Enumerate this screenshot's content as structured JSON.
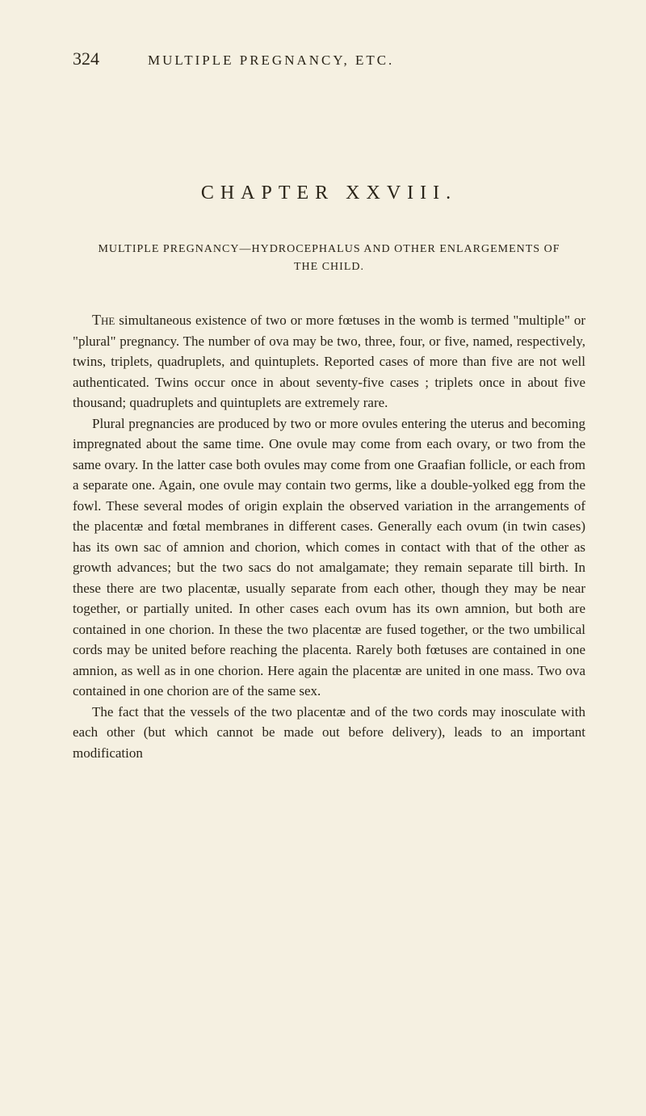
{
  "page": {
    "number": "324",
    "running_title": "MULTIPLE PREGNANCY, ETC."
  },
  "chapter": {
    "title": "CHAPTER XXVIII.",
    "subtitle": "MULTIPLE PREGNANCY—HYDROCEPHALUS AND OTHER ENLARGEMENTS OF THE CHILD."
  },
  "paragraphs": {
    "p1_lead": "The",
    "p1": " simultaneous existence of two or more fœtuses in the womb is termed \"multiple\" or \"plural\" pregnancy. The number of ova may be two, three, four, or five, named, respectively, twins, triplets, quadruplets, and quintuplets. Reported cases of more than five are not well authenticated. Twins occur once in about seventy-five cases ; triplets once in about five thousand; quadruplets and quintuplets are extremely rare.",
    "p2": "Plural pregnancies are produced by two or more ovules entering the uterus and becoming impregnated about the same time. One ovule may come from each ovary, or two from the same ovary. In the latter case both ovules may come from one Graafian follicle, or each from a separate one. Again, one ovule may contain two germs, like a double-yolked egg from the fowl. These several modes of origin explain the observed variation in the arrangements of the placentæ and fœtal membranes in different cases. Generally each ovum (in twin cases) has its own sac of amnion and chorion, which comes in contact with that of the other as growth advances; but the two sacs do not amalgamate; they remain separate till birth. In these there are two placentæ, usually separate from each other, though they may be near together, or partially united. In other cases each ovum has its own amnion, but both are contained in one chorion. In these the two placentæ are fused together, or the two umbilical cords may be united before reaching the placenta. Rarely both fœtuses are contained in one amnion, as well as in one chorion. Here again the placentæ are united in one mass. Two ova contained in one chorion are of the same sex.",
    "p3": "The fact that the vessels of the two placentæ and of the two cords may inosculate with each other (but which cannot be made out before delivery), leads to an important modification"
  }
}
